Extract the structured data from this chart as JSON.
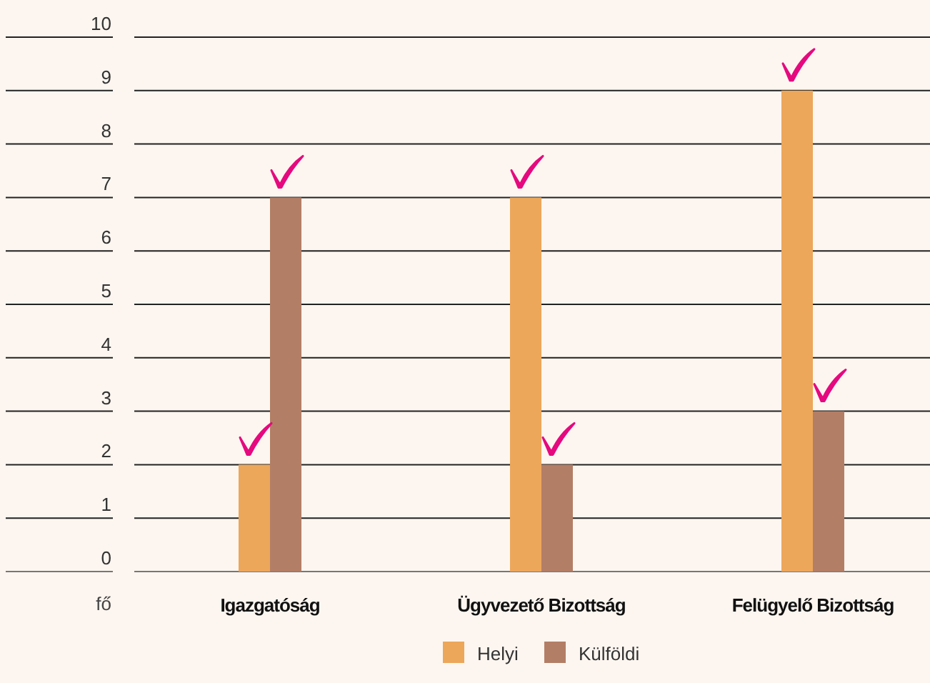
{
  "chart_data": {
    "type": "bar",
    "ylabel": "fő",
    "categories": [
      "Igazgatóság",
      "Ügyvezető Bizottság",
      "Felügyelő Bizottság"
    ],
    "series": [
      {
        "name": "Helyi",
        "color": "#eca75a",
        "values": [
          2,
          7,
          9
        ]
      },
      {
        "name": "Külföldi",
        "color": "#b37e66",
        "values": [
          7,
          2,
          3
        ]
      }
    ],
    "ylim": [
      0,
      10
    ],
    "yticks": [
      0,
      1,
      2,
      3,
      4,
      5,
      6,
      7,
      8,
      9,
      10
    ],
    "grid": "y",
    "legend": "bottom"
  }
}
